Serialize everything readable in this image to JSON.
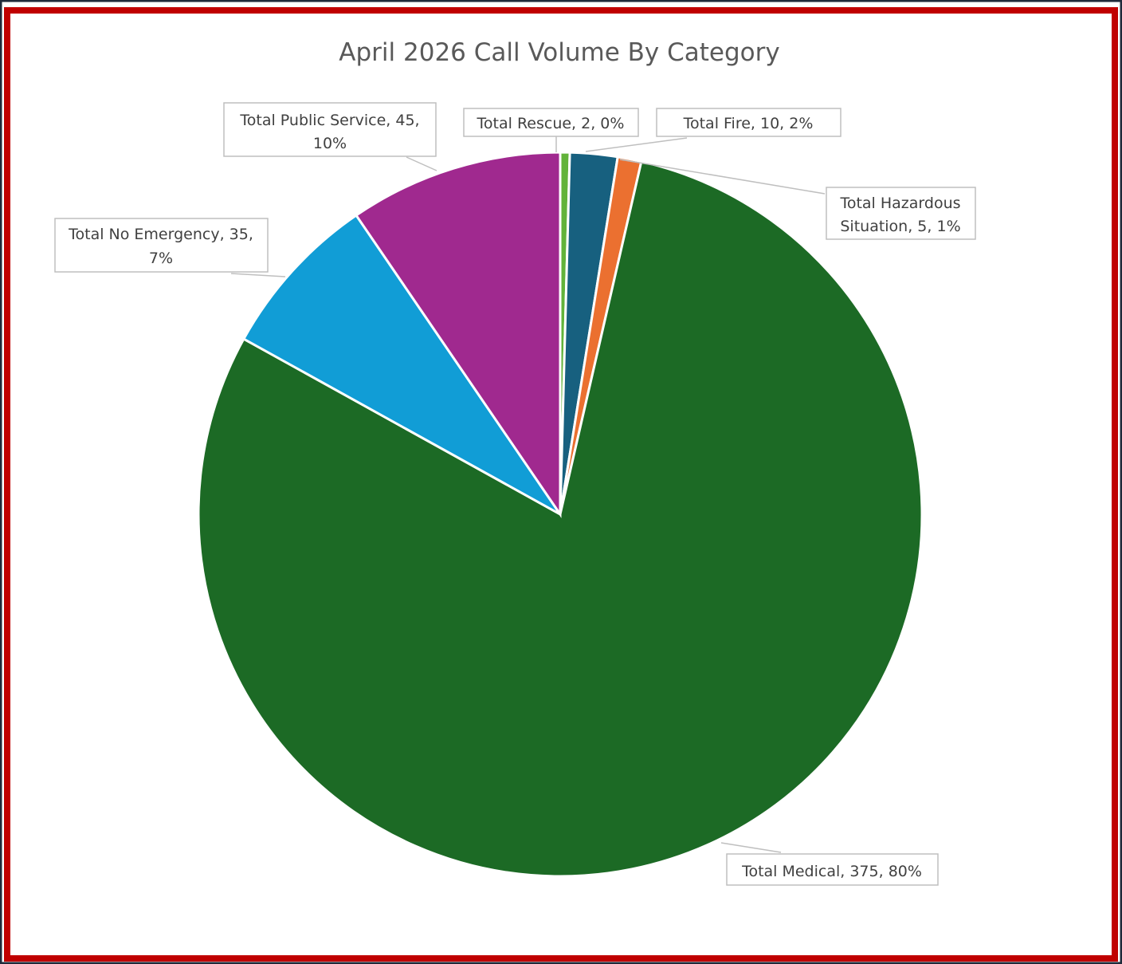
{
  "chart_data": {
    "type": "pie",
    "title": "April 2026 Call Volume By Category",
    "slices": [
      {
        "label": "Total Rescue",
        "value": 2,
        "percent_label": "0%",
        "color": "#62B33A"
      },
      {
        "label": "Total Fire",
        "value": 10,
        "percent_label": "2%",
        "color": "#17607F"
      },
      {
        "label": "Total Hazardous Situation",
        "value": 5,
        "percent_label": "1%",
        "color": "#EB7030"
      },
      {
        "label": "Total Medical",
        "value": 375,
        "percent_label": "80%",
        "color": "#1C6A25"
      },
      {
        "label": "Total No Emergency",
        "value": 35,
        "percent_label": "7%",
        "color": "#119DD6"
      },
      {
        "label": "Total Public Service",
        "value": 45,
        "percent_label": "10%",
        "color": "#A0298F"
      }
    ],
    "data_labels": [
      {
        "lines": [
          "Total Public Service, 45,",
          "10%"
        ]
      },
      {
        "lines": [
          "Total Rescue, 2, 0%"
        ]
      },
      {
        "lines": [
          "Total Fire, 10, 2%"
        ]
      },
      {
        "lines": [
          "Total Hazardous",
          "Situation, 5, 1%"
        ]
      },
      {
        "lines": [
          "Total No Emergency, 35,",
          "7%"
        ]
      },
      {
        "lines": [
          "Total Medical, 375, 80%"
        ]
      }
    ],
    "legend": "none"
  },
  "frame": {
    "outer_color": "#1F2A3A",
    "border_color": "#C00000"
  }
}
